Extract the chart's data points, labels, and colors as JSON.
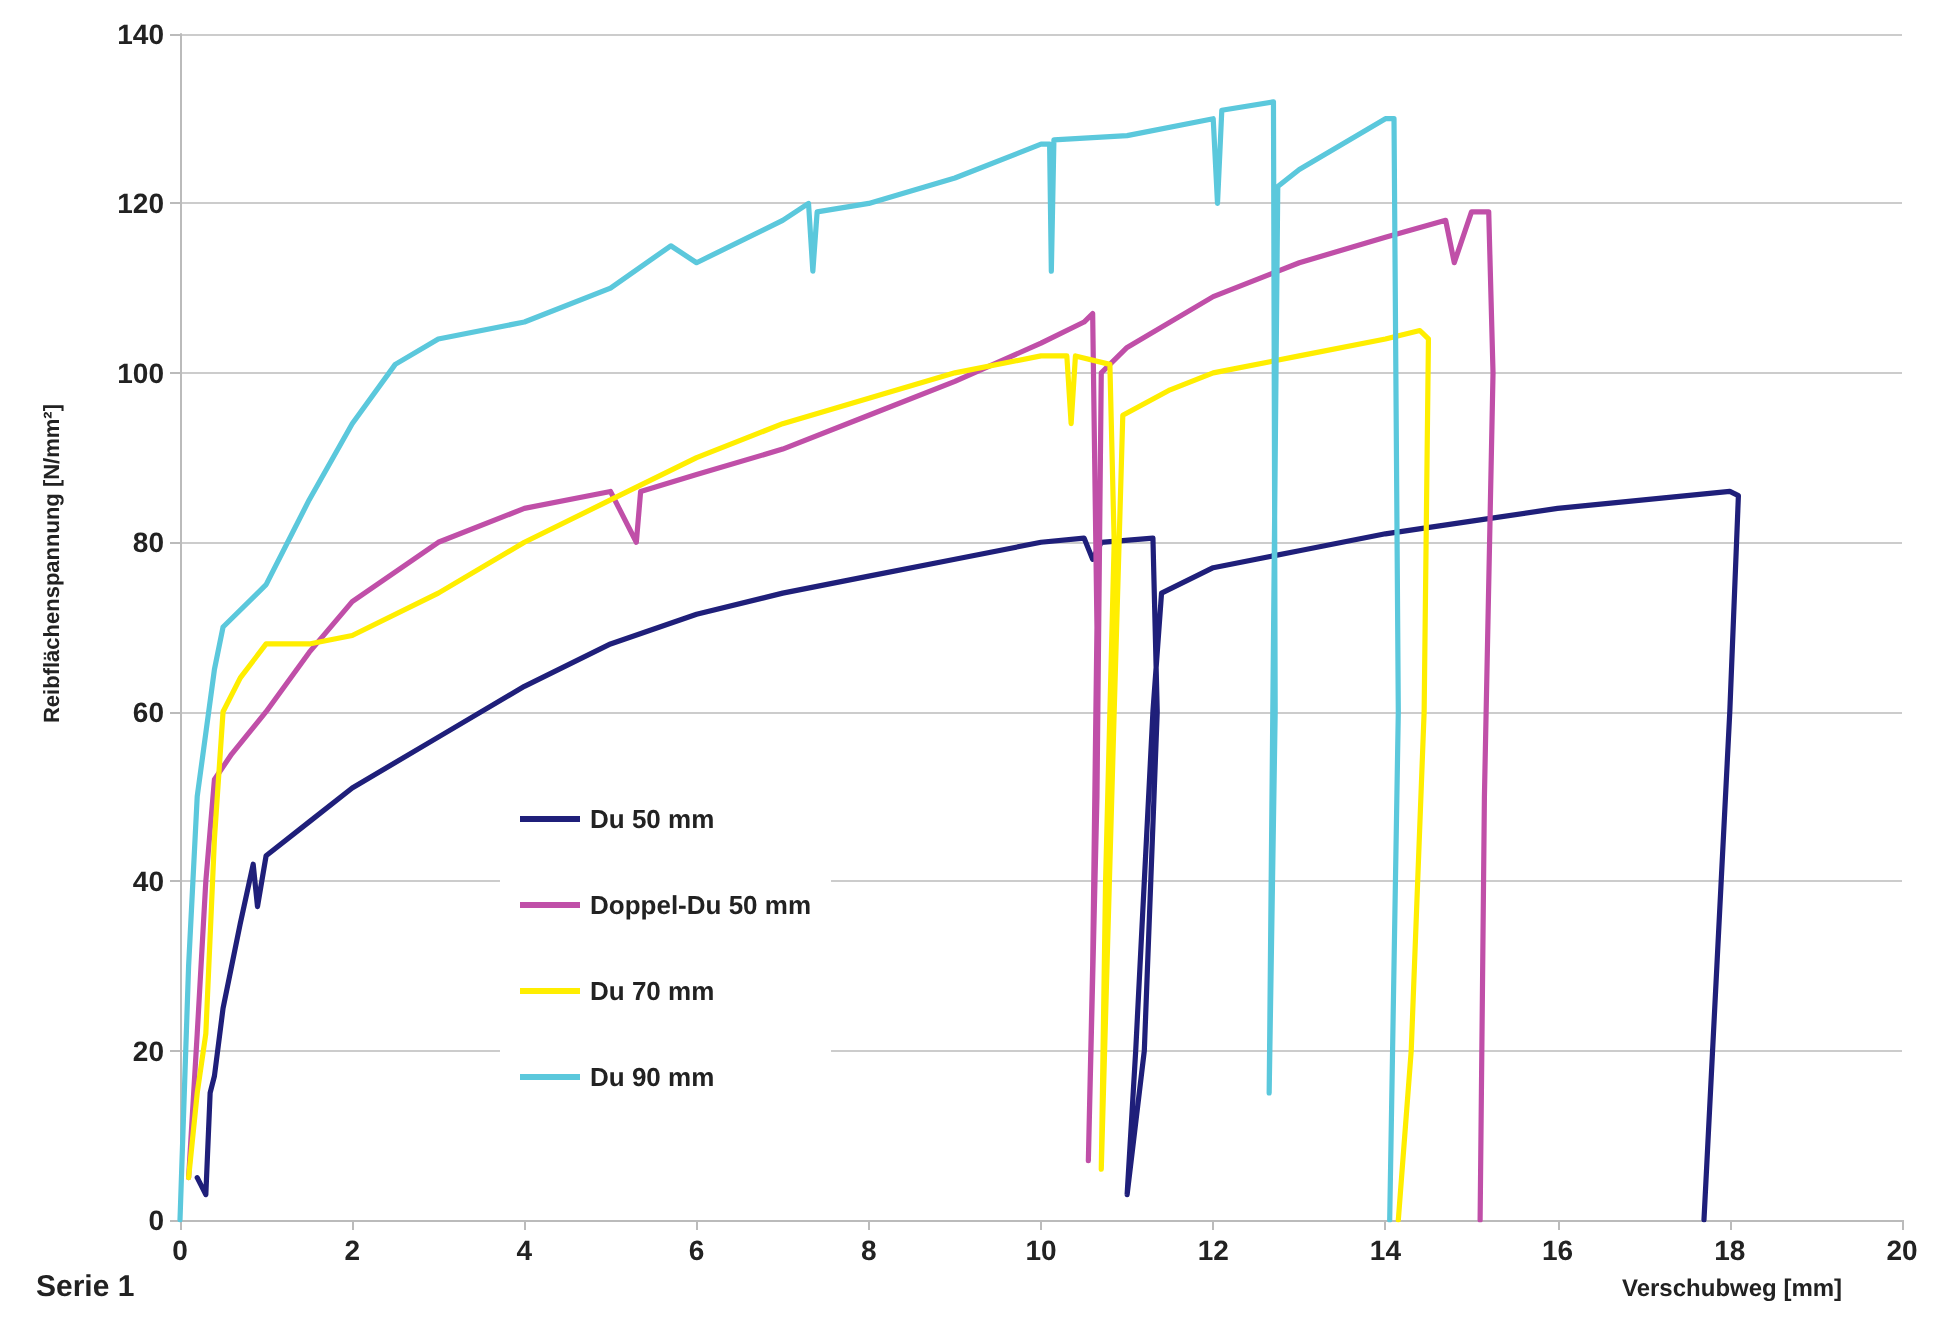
{
  "chart_data": {
    "type": "line",
    "xlabel": "Verschubweg [mm]",
    "ylabel": "Reibflächenspannung [N/mm²]",
    "annotations": [
      "Serie 1"
    ],
    "xlim": [
      0,
      20
    ],
    "xticks": [
      0,
      2,
      4,
      6,
      8,
      10,
      12,
      14,
      16,
      18,
      20
    ],
    "ylim": [
      0,
      140
    ],
    "yticks": [
      0,
      20,
      40,
      60,
      80,
      100,
      120,
      140
    ],
    "grid": "y",
    "legend": "bottom left",
    "marker": "none",
    "line_style": "solid",
    "series": [
      {
        "name": "Du 50 mm",
        "color": "#1f1f7a",
        "x": [
          0.2,
          0.3,
          0.35,
          0.4,
          0.5,
          0.7,
          0.85,
          0.9,
          1.0,
          1.5,
          2,
          3,
          4,
          5,
          6,
          7,
          8,
          9,
          10,
          10.5,
          10.6,
          10.7,
          11.3,
          11.35,
          11.2,
          11.0,
          11.1,
          11.3,
          11.4,
          12,
          13,
          14,
          15,
          16,
          17,
          18,
          18.1,
          18.0,
          17.85,
          17.7
        ],
        "values": [
          5,
          3,
          15,
          17,
          25,
          35,
          42,
          37,
          43,
          47,
          51,
          57,
          63,
          68,
          71.5,
          74,
          76,
          78,
          80,
          80.5,
          78,
          80,
          80.5,
          60,
          20,
          3,
          20,
          60,
          74,
          77,
          79,
          81,
          82.5,
          84,
          85,
          86,
          85.5,
          60,
          30,
          0
        ]
      },
      {
        "name": "Doppel-Du 50 mm",
        "color": "#c04fa8",
        "x": [
          0.1,
          0.2,
          0.3,
          0.4,
          0.6,
          1,
          1.5,
          2,
          3,
          4,
          5,
          5.3,
          5.35,
          6,
          7,
          8,
          9,
          10,
          10.5,
          10.6,
          10.65,
          10.6,
          10.55,
          10.65,
          10.7,
          11,
          12,
          13,
          14,
          14.7,
          14.8,
          15,
          15.2,
          15.25,
          15.15,
          15.1
        ],
        "values": [
          5,
          22,
          40,
          52,
          55,
          60,
          67,
          73,
          80,
          84,
          86,
          80,
          86,
          88,
          91,
          95,
          99,
          103.5,
          106,
          107,
          70,
          30,
          7,
          50,
          100,
          103,
          109,
          113,
          116,
          118,
          113,
          119,
          119,
          100,
          50,
          0
        ]
      },
      {
        "name": "Du 70 mm",
        "color": "#ffee00",
        "x": [
          0.1,
          0.2,
          0.3,
          0.4,
          0.5,
          0.7,
          1,
          1.5,
          2,
          3,
          4,
          5,
          6,
          7,
          8,
          9,
          10,
          10.3,
          10.35,
          10.4,
          10.8,
          10.85,
          10.75,
          10.7,
          10.85,
          10.95,
          11.5,
          12,
          13,
          14,
          14.4,
          14.5,
          14.45,
          14.3,
          14.15
        ],
        "values": [
          5,
          15,
          22,
          45,
          60,
          64,
          68,
          68,
          69,
          74,
          80,
          85,
          90,
          94,
          97,
          100,
          102,
          102,
          94,
          102,
          101,
          80,
          40,
          6,
          60,
          95,
          98,
          100,
          102,
          104,
          105,
          104,
          60,
          20,
          0
        ]
      },
      {
        "name": "Du 90 mm",
        "color": "#5bc8dc",
        "x": [
          0,
          0.1,
          0.2,
          0.4,
          0.5,
          1,
          1.5,
          2,
          2.5,
          3,
          4,
          5,
          5.7,
          6,
          7,
          7.3,
          7.35,
          7.4,
          8,
          9,
          10,
          10.1,
          10.12,
          10.15,
          11,
          12,
          12.05,
          12.1,
          12.7,
          12.72,
          12.65,
          12.75,
          13,
          14,
          14.1,
          14.15,
          14.05
        ],
        "values": [
          0,
          30,
          50,
          65,
          70,
          75,
          85,
          94,
          101,
          104,
          106,
          110,
          115,
          113,
          118,
          120,
          112,
          119,
          120,
          123,
          127,
          127,
          112,
          127.5,
          128,
          130,
          120,
          131,
          132,
          60,
          15,
          122,
          124,
          130,
          130,
          60,
          0
        ]
      }
    ]
  }
}
